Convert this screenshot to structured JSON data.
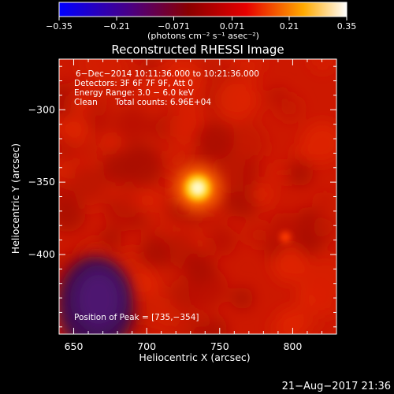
{
  "chart_data": {
    "type": "heatmap",
    "title": "Reconstructed RHESSI Image",
    "xlabel": "Heliocentric X (arcsec)",
    "ylabel": "Heliocentric Y (arcsec)",
    "xlim": [
      640,
      830
    ],
    "ylim": [
      -455,
      -265
    ],
    "x_ticks": [
      650,
      700,
      750,
      800
    ],
    "y_ticks": [
      -300,
      -350,
      -400
    ],
    "x_tick_labels": [
      "650",
      "700",
      "750",
      "800"
    ],
    "y_tick_labels": [
      "−300",
      "−350",
      "−400"
    ],
    "colorbar": {
      "range": [
        -0.35,
        0.35
      ],
      "ticks": [
        -0.35,
        -0.21,
        -0.071,
        0.071,
        0.21,
        0.35
      ],
      "tick_labels": [
        "−0.35",
        "−0.21",
        "−0.071",
        "0.071",
        "0.21",
        "0.35"
      ],
      "unit_label": "(photons cm⁻² s⁻¹ asec⁻²)",
      "colors": [
        "#0000ff",
        "#4b0082",
        "#8a0000",
        "#e60000",
        "#ffaa00",
        "#ffffff"
      ]
    },
    "annotations": {
      "line1": "6−Dec−2014 10:11:36.000 to 10:21:36.000",
      "line2": "Detectors: 3F 6F 7F 9F, Att 0",
      "line3": "Energy Range: 3.0 − 6.0 keV",
      "line4_left": "Clean",
      "line4_right": "Total counts: 6.96E+04",
      "peak": "Position of Peak = [735,−354]"
    },
    "peak": {
      "x": 735,
      "y": -354,
      "value": 0.35
    },
    "secondary_peak": {
      "x": 795,
      "y": -388,
      "value": 0.12
    },
    "negative_region": {
      "x": 665,
      "y": -435,
      "value": -0.1
    },
    "background_value": 0.07
  },
  "footer": {
    "timestamp": "21−Aug−2017 21:36"
  }
}
